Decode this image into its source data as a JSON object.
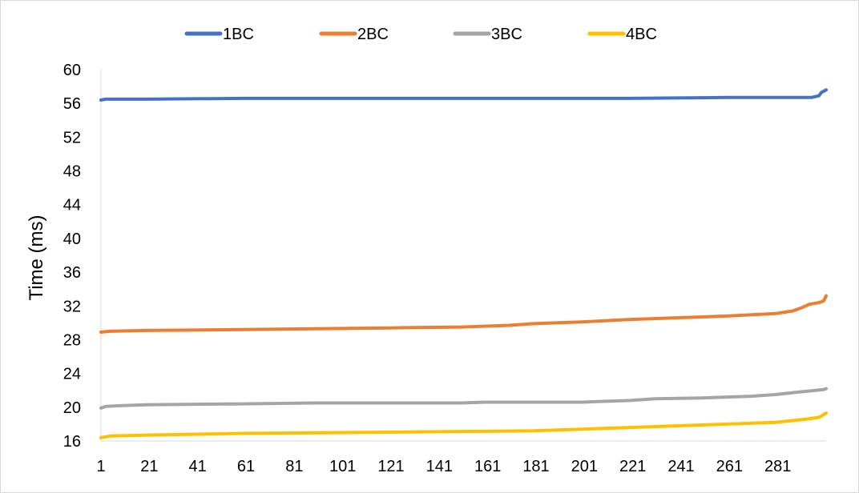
{
  "chart_data": {
    "type": "line",
    "title": "",
    "xlabel": "",
    "ylabel": "Time (ms)",
    "xlim": [
      1,
      301
    ],
    "ylim": [
      16,
      60
    ],
    "y_ticks": [
      16,
      20,
      24,
      28,
      32,
      36,
      40,
      44,
      48,
      52,
      56,
      60
    ],
    "x_ticks": [
      1,
      21,
      41,
      61,
      81,
      101,
      121,
      141,
      161,
      181,
      201,
      221,
      241,
      261,
      281
    ],
    "grid": false,
    "legend_position": "top",
    "series": [
      {
        "name": "1BC",
        "color": "#4472C4",
        "points": [
          [
            1,
            56.4
          ],
          [
            3,
            56.5
          ],
          [
            20,
            56.5
          ],
          [
            60,
            56.6
          ],
          [
            120,
            56.6
          ],
          [
            180,
            56.6
          ],
          [
            220,
            56.6
          ],
          [
            260,
            56.7
          ],
          [
            280,
            56.7
          ],
          [
            295,
            56.7
          ],
          [
            298,
            56.9
          ],
          [
            299,
            57.3
          ],
          [
            301,
            57.6
          ]
        ]
      },
      {
        "name": "2BC",
        "color": "#ED7D31",
        "points": [
          [
            1,
            28.9
          ],
          [
            5,
            29.0
          ],
          [
            20,
            29.1
          ],
          [
            60,
            29.2
          ],
          [
            90,
            29.3
          ],
          [
            120,
            29.4
          ],
          [
            150,
            29.5
          ],
          [
            170,
            29.7
          ],
          [
            180,
            29.9
          ],
          [
            200,
            30.1
          ],
          [
            220,
            30.4
          ],
          [
            240,
            30.6
          ],
          [
            260,
            30.8
          ],
          [
            280,
            31.1
          ],
          [
            287,
            31.4
          ],
          [
            291,
            31.8
          ],
          [
            294,
            32.2
          ],
          [
            298,
            32.4
          ],
          [
            300,
            32.6
          ],
          [
            301,
            33.2
          ]
        ]
      },
      {
        "name": "3BC",
        "color": "#A5A5A5",
        "points": [
          [
            1,
            19.9
          ],
          [
            3,
            20.1
          ],
          [
            10,
            20.2
          ],
          [
            20,
            20.3
          ],
          [
            60,
            20.4
          ],
          [
            90,
            20.5
          ],
          [
            150,
            20.5
          ],
          [
            160,
            20.6
          ],
          [
            200,
            20.6
          ],
          [
            210,
            20.7
          ],
          [
            220,
            20.8
          ],
          [
            230,
            21.0
          ],
          [
            250,
            21.1
          ],
          [
            270,
            21.3
          ],
          [
            280,
            21.5
          ],
          [
            290,
            21.8
          ],
          [
            300,
            22.1
          ],
          [
            301,
            22.2
          ]
        ]
      },
      {
        "name": "4BC",
        "color": "#FFC000",
        "points": [
          [
            1,
            16.4
          ],
          [
            5,
            16.6
          ],
          [
            20,
            16.7
          ],
          [
            60,
            16.9
          ],
          [
            100,
            17.0
          ],
          [
            140,
            17.1
          ],
          [
            180,
            17.2
          ],
          [
            200,
            17.4
          ],
          [
            220,
            17.6
          ],
          [
            240,
            17.8
          ],
          [
            260,
            18.0
          ],
          [
            280,
            18.2
          ],
          [
            293,
            18.6
          ],
          [
            298,
            18.8
          ],
          [
            301,
            19.3
          ]
        ]
      }
    ]
  }
}
